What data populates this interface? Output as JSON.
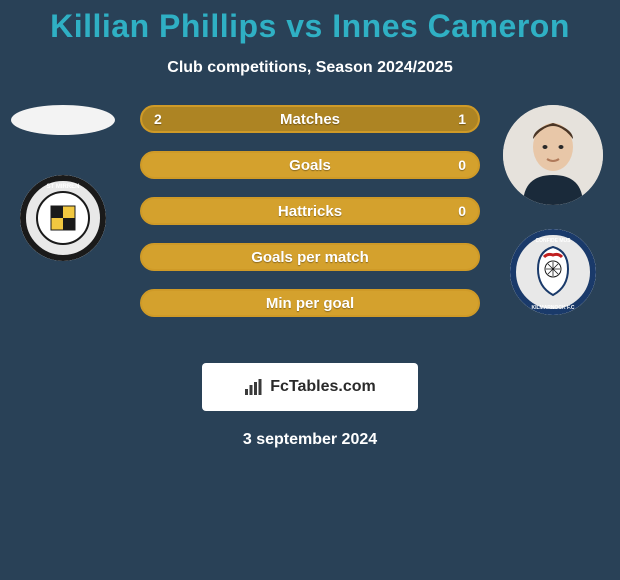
{
  "title": "Killian Phillips vs Innes Cameron",
  "title_color": "#2fb0c4",
  "title_fontsize": 32,
  "subtitle": "Club competitions, Season 2024/2025",
  "subtitle_color": "#ffffff",
  "background_color": "#294157",
  "left_player": {
    "name": "Killian Phillips",
    "photo_shape": "oval-blank",
    "club_badge_label": "St Mirren FC"
  },
  "right_player": {
    "name": "Innes Cameron",
    "photo_shape": "portrait",
    "club_badge_label": "Kilmarnock FC"
  },
  "bars": {
    "bar_bg": "#d4a12d",
    "bar_fill": "#ad8423",
    "bar_border": "#cf9a27",
    "text_color": "#ffffff",
    "rows": [
      {
        "label": "Matches",
        "left": "2",
        "right": "1",
        "left_pct": 66.7,
        "right_pct": 33.3
      },
      {
        "label": "Goals",
        "left": "",
        "right": "0",
        "left_pct": 0,
        "right_pct": 0
      },
      {
        "label": "Hattricks",
        "left": "",
        "right": "0",
        "left_pct": 0,
        "right_pct": 0
      },
      {
        "label": "Goals per match",
        "left": "",
        "right": "",
        "left_pct": 0,
        "right_pct": 0
      },
      {
        "label": "Min per goal",
        "left": "",
        "right": "",
        "left_pct": 0,
        "right_pct": 0
      }
    ]
  },
  "brand": {
    "text": "FcTables.com",
    "box_bg": "#ffffff",
    "text_color": "#2a2a2a"
  },
  "date": "3 september 2024"
}
